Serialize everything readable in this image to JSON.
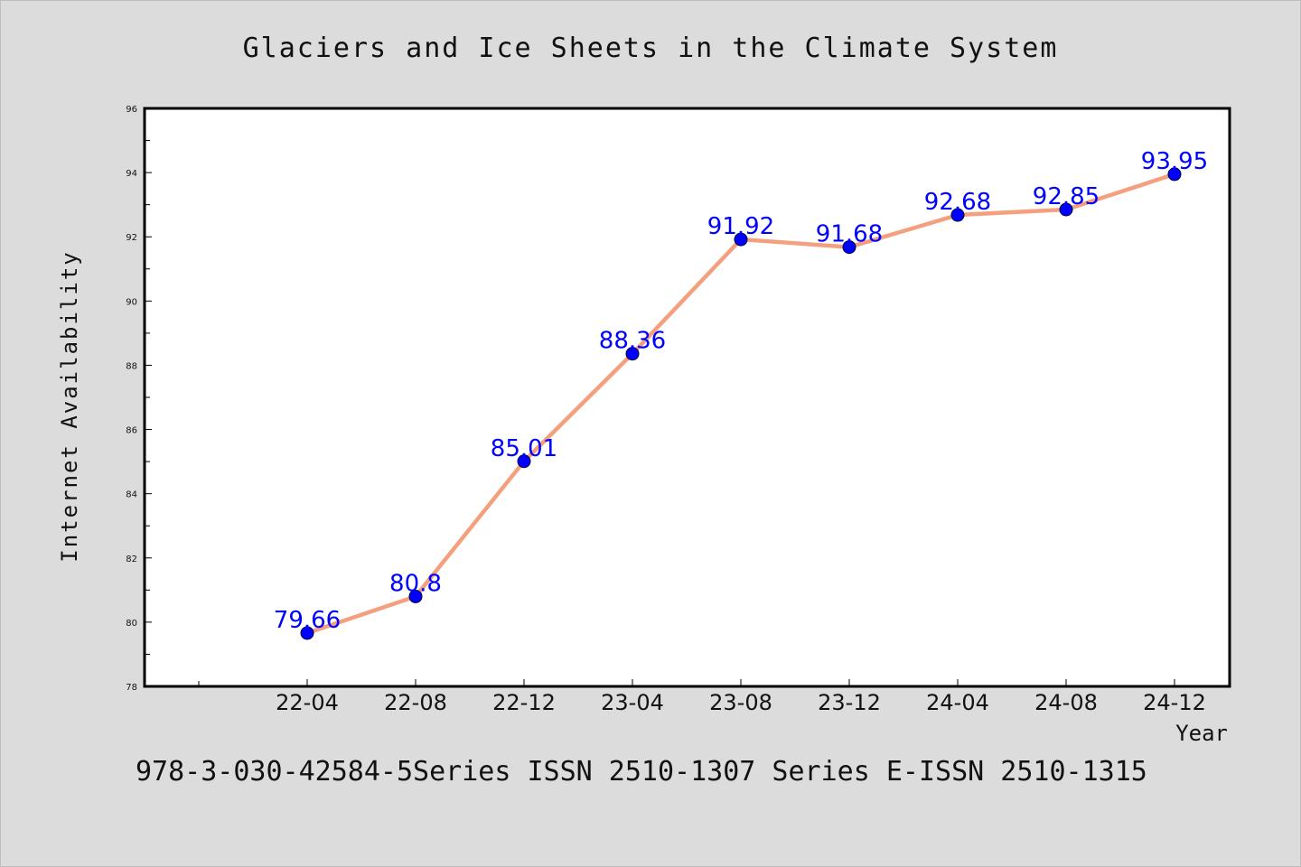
{
  "chart_data": {
    "type": "line",
    "title": "Glaciers and Ice Sheets in the Climate System",
    "xlabel": "Year",
    "ylabel": "Internet Availability",
    "categories": [
      "22-04",
      "22-08",
      "22-12",
      "23-04",
      "23-08",
      "23-12",
      "24-04",
      "24-08",
      "24-12"
    ],
    "series": [
      {
        "values": [
          79.66,
          80.8,
          85.01,
          88.36,
          91.92,
          91.68,
          92.68,
          92.85,
          93.95
        ],
        "data_labels": [
          "79.66",
          "80.8",
          "85.01",
          "88.36",
          "91.92",
          "91.68",
          "92.68",
          "92.85",
          "93.95"
        ]
      }
    ],
    "ylim": [
      78,
      96
    ],
    "yticks": [
      "78",
      "80",
      "82",
      "84",
      "86",
      "88",
      "90",
      "92",
      "94",
      "96"
    ],
    "grid": false,
    "legend": "none",
    "colors": {
      "line": "#f4a07e",
      "marker": "#0000ff",
      "label": "#0000ff",
      "background": "#dcdcdc",
      "plot_bg": "#ffffff"
    }
  },
  "footer_text": "978-3-030-42584-5Series ISSN 2510-1307 Series E-ISSN 2510-1315"
}
